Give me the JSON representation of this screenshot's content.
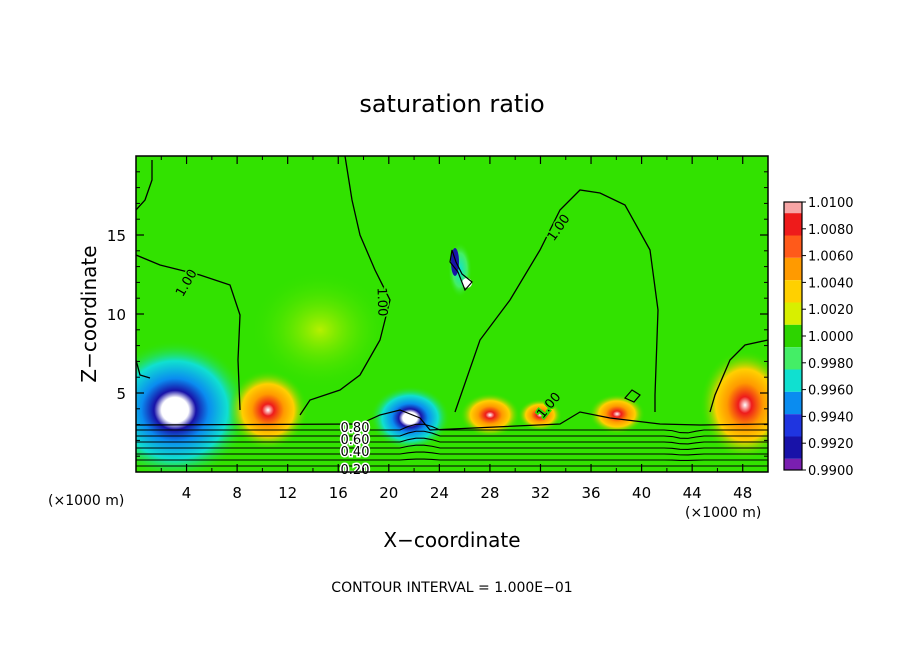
{
  "chart_data": {
    "type": "heatmap",
    "title": "saturation ratio",
    "xlabel": "X−coordinate",
    "ylabel": "Z−coordinate",
    "x_unit": "(×1000 m)",
    "z_unit": "(×1000 m)",
    "xlim": [
      0,
      50
    ],
    "ylim": [
      0,
      20
    ],
    "x_ticks": [
      4,
      8,
      12,
      16,
      20,
      24,
      28,
      32,
      36,
      40,
      44,
      48
    ],
    "x_tick_labels": [
      "4",
      "8",
      "12",
      "16",
      "20",
      "24",
      "28",
      "32",
      "36",
      "40",
      "44",
      "48"
    ],
    "y_ticks": [
      5,
      10,
      15
    ],
    "y_tick_labels": [
      "5",
      "10",
      "15"
    ],
    "footnote": "CONTOUR INTERVAL = 1.000E−01",
    "colorbar": {
      "labels": [
        "1.0100",
        "1.0080",
        "1.0060",
        "1.0040",
        "1.0020",
        "1.0000",
        "0.9980",
        "0.9960",
        "0.9940",
        "0.9920",
        "0.9900"
      ],
      "colors": [
        "#f6a5a5",
        "#ee1b1b",
        "#ff5a1a",
        "#ff9a00",
        "#ffd000",
        "#d8ef00",
        "#2dd400",
        "#44ee66",
        "#10e0d0",
        "#0a8cf0",
        "#1f35e0",
        "#1812a8",
        "#7a1fb0"
      ]
    },
    "contour_labels": [
      "1.00",
      "1.00",
      "1.00",
      "1.00",
      "0.80",
      "0.60",
      "0.40",
      "0.20"
    ],
    "background_color": "#32e200"
  }
}
